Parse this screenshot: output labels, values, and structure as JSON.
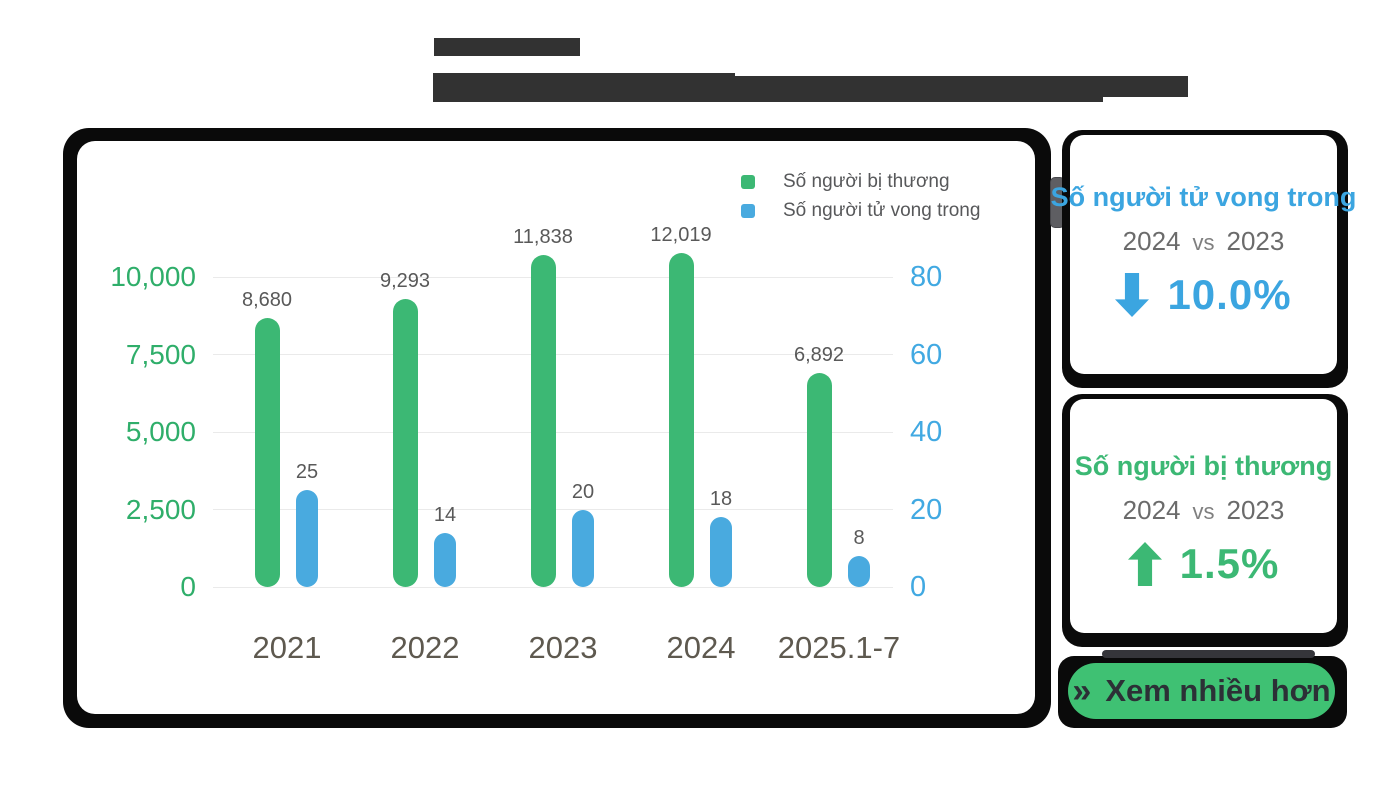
{
  "colors": {
    "green": "#3cb874",
    "blue": "#49aadf",
    "green_accent": "#2fae6a",
    "blue_accent": "#3ba5e0",
    "frame_black": "#0a0a0a",
    "redaction_gray": "#323232",
    "grid_gray": "#eaeaea",
    "button_green": "#3fc173"
  },
  "chart_data": {
    "type": "bar",
    "title": "",
    "categories": [
      "2021",
      "2022",
      "2023",
      "2024",
      "2025.1-7"
    ],
    "series": [
      {
        "name": "Số người bị thương",
        "axis": "left",
        "color": "#3cb874",
        "values": [
          8680,
          9293,
          11838,
          12019,
          6892
        ],
        "labels": [
          "8,680",
          "9,293",
          "11,838",
          "12,019",
          "6,892"
        ]
      },
      {
        "name": "Số người tử vong trong",
        "axis": "right",
        "color": "#49aadf",
        "values": [
          25,
          14,
          20,
          18,
          8
        ],
        "labels": [
          "25",
          "14",
          "20",
          "18",
          "8"
        ]
      }
    ],
    "left_axis": {
      "color": "#2fae6a",
      "ticks": [
        0,
        2500,
        5000,
        7500,
        10000
      ],
      "tick_labels": [
        "0",
        "2,500",
        "5,000",
        "7,500",
        "10,000"
      ],
      "range": [
        0,
        12500
      ]
    },
    "right_axis": {
      "color": "#41a9e2",
      "ticks": [
        0,
        20,
        40,
        60,
        80
      ],
      "tick_labels": [
        "0",
        "20",
        "40",
        "60",
        "80"
      ],
      "range": [
        0,
        100
      ]
    },
    "legend": {
      "position": "top-right"
    },
    "grid": true
  },
  "panel_deaths": {
    "title": "Số người tử vong trong",
    "year_a": "2024",
    "vs": "vs",
    "year_b": "2023",
    "direction": "down",
    "value": "10.0%",
    "accent": "#3ba5e0"
  },
  "panel_injuries": {
    "title": "Số người bị thương",
    "year_a": "2024",
    "vs": "vs",
    "year_b": "2023",
    "direction": "up",
    "value": "1.5%",
    "accent": "#3cb874"
  },
  "more_button": {
    "icon": "»",
    "label": "Xem nhiều hơn"
  }
}
